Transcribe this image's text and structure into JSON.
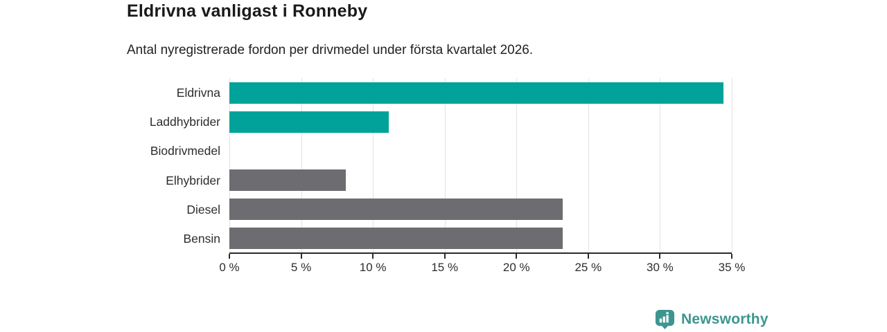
{
  "title": "Eldrivna vanligast i Ronneby",
  "subtitle": "Antal nyregistrerade fordon per drivmedel under första kvartalet 2026.",
  "chart_data": {
    "type": "bar",
    "orientation": "horizontal",
    "title": "Eldrivna vanligast i Ronneby",
    "subtitle": "Antal nyregistrerade fordon per drivmedel under första kvartalet 2026.",
    "categories": [
      "Eldrivna",
      "Laddhybrider",
      "Biodrivmedel",
      "Elhybrider",
      "Diesel",
      "Bensin"
    ],
    "values": [
      34.4,
      11.1,
      0,
      8.1,
      23.2,
      23.2
    ],
    "unit": "%",
    "xlabel": "",
    "ylabel": "",
    "xlim": [
      0,
      35
    ],
    "x_tick_values": [
      0,
      5,
      10,
      15,
      20,
      25,
      30,
      35
    ],
    "x_tick_labels": [
      "0 %",
      "5 %",
      "10 %",
      "15 %",
      "20 %",
      "25 %",
      "30 %",
      "35 %"
    ],
    "grid": true,
    "legend": false,
    "bar_colors": [
      "#00a29a",
      "#00a29a",
      "#00a29a",
      "#6c6c71",
      "#6c6c71",
      "#6c6c71"
    ],
    "highlight_color": "#00a29a",
    "default_color": "#6c6c71",
    "gridline_color": "#e2e2e2",
    "axis_color": "#2b2b2b"
  },
  "footer": {
    "brand": "Newsworthy",
    "brand_color": "#3c968f",
    "logo_icon": "bar-chart-pin-icon"
  }
}
